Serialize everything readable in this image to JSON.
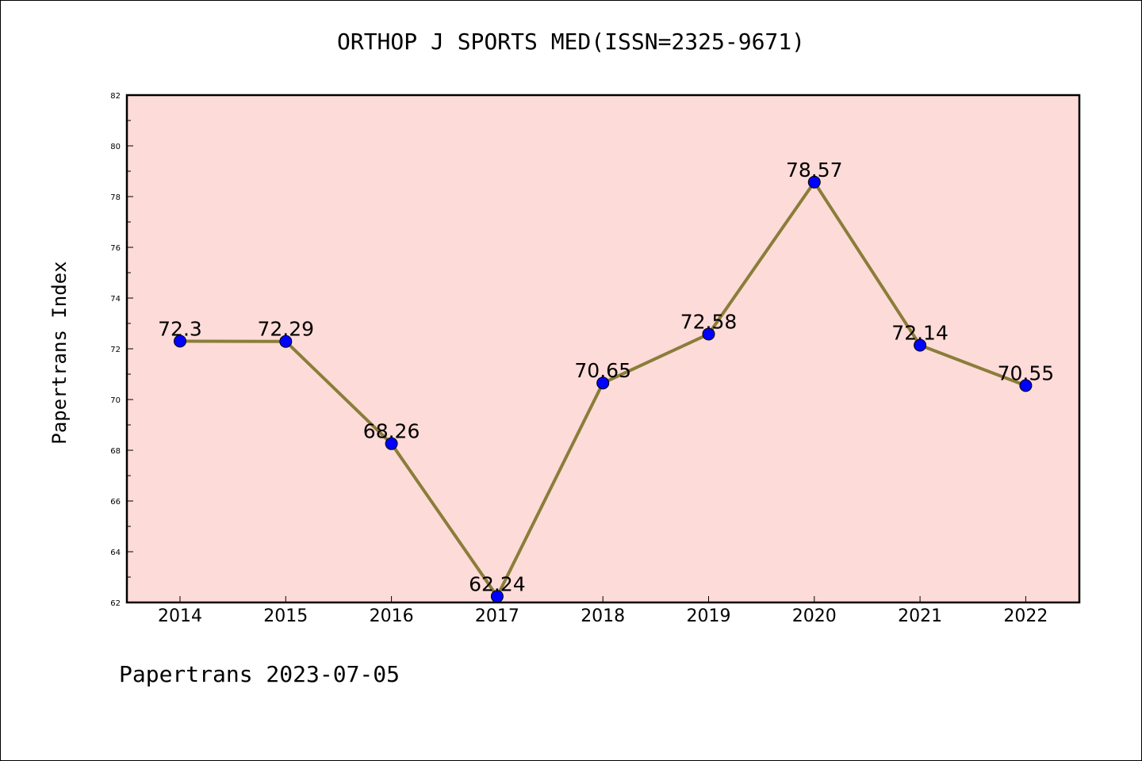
{
  "chart_data": {
    "type": "line",
    "title": "ORTHOP J SPORTS MED(ISSN=2325-9671)",
    "ylabel": "Papertrans Index",
    "xlabel": "",
    "categories": [
      "2014",
      "2015",
      "2016",
      "2017",
      "2018",
      "2019",
      "2020",
      "2021",
      "2022"
    ],
    "series": [
      {
        "values": [
          72.3,
          72.29,
          68.26,
          62.24,
          70.65,
          72.58,
          78.57,
          72.14,
          70.55
        ],
        "labels": [
          "72.3",
          "72.29",
          "68.26",
          "62.24",
          "70.65",
          "72.58",
          "78.57",
          "72.14",
          "70.55"
        ]
      }
    ],
    "ylim": [
      62,
      82
    ],
    "yticks": [
      62,
      64,
      66,
      68,
      70,
      72,
      74,
      76,
      78,
      80,
      82
    ],
    "grid": false,
    "colors": {
      "plot_background": "#fddbd8",
      "line": "#8b7d3a",
      "marker": "#0000ff"
    }
  },
  "footer": "Papertrans 2023-07-05"
}
